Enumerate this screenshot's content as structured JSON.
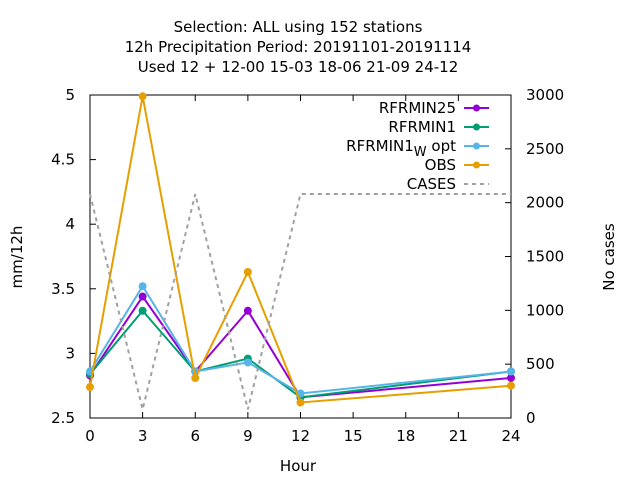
{
  "chart_data": {
    "type": "line",
    "title_lines": [
      "Selection: ALL using   152 stations",
      "12h Precipitation    Period: 20191101-20191114",
      "Used  12 + 12-00 15-03 18-06 21-09 24-12"
    ],
    "xlabel": "Hour",
    "ylabel": "mm/12h",
    "y2label": "No cases",
    "xlim": [
      0,
      24
    ],
    "ylim": [
      2.5,
      5
    ],
    "y2lim": [
      0,
      3000
    ],
    "xticks": [
      0,
      3,
      6,
      9,
      12,
      15,
      18,
      21,
      24
    ],
    "yticks": [
      "2.5",
      "3",
      "3.5",
      "4",
      "4.5",
      "5"
    ],
    "y2ticks": [
      0,
      500,
      1000,
      1500,
      2000,
      2500,
      3000
    ],
    "legend_position": "top-right",
    "series": [
      {
        "name": "RFRMIN25",
        "color": "#9400d3",
        "axis": "y",
        "marker": "filled-circle",
        "x": [
          0,
          3,
          6,
          9,
          12,
          24
        ],
        "y": [
          2.83,
          3.44,
          2.86,
          3.33,
          2.66,
          2.81
        ]
      },
      {
        "name": "RFRMIN1",
        "color": "#009e73",
        "axis": "y",
        "marker": "filled-circle",
        "x": [
          0,
          3,
          6,
          9,
          12,
          24
        ],
        "y": [
          2.84,
          3.33,
          2.86,
          2.96,
          2.66,
          2.86
        ]
      },
      {
        "name": "RFRMIN1",
        "name_subscript": "W",
        "name_suffix": "opt",
        "color": "#56b4e9",
        "axis": "y",
        "marker": "filled-circle",
        "x": [
          0,
          3,
          6,
          9,
          12,
          24
        ],
        "y": [
          2.86,
          3.52,
          2.86,
          2.93,
          2.69,
          2.86
        ]
      },
      {
        "name": "OBS",
        "color": "#e69f00",
        "axis": "y",
        "marker": "filled-circle",
        "x": [
          0,
          3,
          6,
          9,
          12,
          24
        ],
        "y": [
          2.74,
          4.99,
          2.81,
          3.63,
          2.62,
          2.75
        ]
      },
      {
        "name": "CASES",
        "color": "#a0a0a0",
        "axis": "y2",
        "dashed": true,
        "x": [
          0,
          3,
          6,
          9,
          12,
          24
        ],
        "y": [
          2080,
          80,
          2080,
          80,
          2080,
          2080
        ]
      }
    ]
  }
}
